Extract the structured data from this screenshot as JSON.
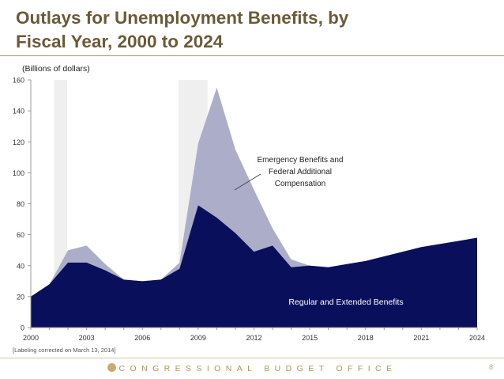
{
  "slide": {
    "title_line1": "Outlays for Unemployment Benefits, by",
    "title_line2": "Fiscal Year, 2000 to 2024",
    "footnote": "[Labeling corrected on March 13, 2014]",
    "footer": "CONGRESSIONAL BUDGET OFFICE",
    "page_number": "8"
  },
  "colors": {
    "regular": "#0a0f5c",
    "emergency": "#acaec9",
    "recession_shade": "#e6e6e6",
    "title": "#6b5a38"
  },
  "chart_data": {
    "type": "area",
    "title": "Outlays for Unemployment Benefits, by Fiscal Year, 2000 to 2024",
    "ylabel": "(Billions of dollars)",
    "xlabel": "",
    "xlim": [
      2000,
      2024
    ],
    "ylim": [
      0,
      160
    ],
    "x_ticks": [
      "2000",
      "2003",
      "2006",
      "2009",
      "2012",
      "2015",
      "2018",
      "2021",
      "2024"
    ],
    "y_ticks": [
      "0",
      "20",
      "40",
      "60",
      "80",
      "100",
      "120",
      "140",
      "160"
    ],
    "x": [
      2000,
      2001,
      2002,
      2003,
      2004,
      2005,
      2006,
      2007,
      2008,
      2009,
      2010,
      2011,
      2012,
      2013,
      2014,
      2015,
      2016,
      2017,
      2018,
      2019,
      2020,
      2021,
      2022,
      2023,
      2024
    ],
    "recessions": [
      [
        2001.25,
        2001.95
      ],
      [
        2007.95,
        2009.5
      ]
    ],
    "series": [
      {
        "name": "Regular and Extended Benefits",
        "values": [
          20,
          28,
          42,
          42,
          37,
          31,
          30,
          31,
          38,
          79,
          71,
          61,
          49,
          53,
          39,
          40,
          39,
          41,
          43,
          46,
          49,
          52,
          54,
          56,
          58
        ]
      },
      {
        "name": "Emergency Benefits and Federal Additional Compensation",
        "values": [
          0,
          0,
          8,
          11,
          4,
          0,
          0,
          0,
          4,
          40,
          84,
          54,
          40,
          11,
          5,
          0,
          0,
          0,
          0,
          0,
          0,
          0,
          0,
          0,
          0
        ]
      }
    ],
    "annotations": {
      "emergency_label": [
        "Emergency Benefits and",
        "Federal Additional",
        "Compensation"
      ],
      "regular_label": "Regular and Extended Benefits"
    }
  }
}
